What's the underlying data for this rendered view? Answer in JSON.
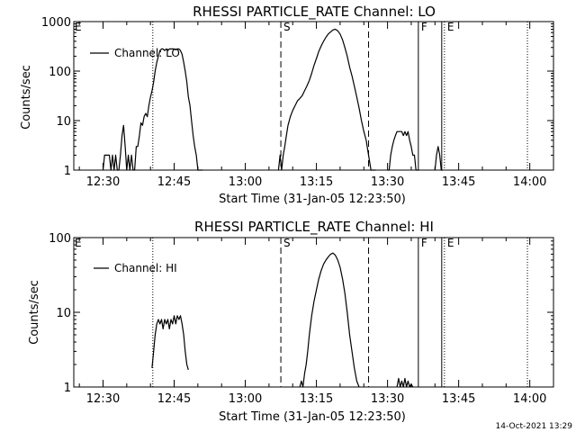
{
  "chart_data": [
    {
      "type": "line",
      "title": "RHESSI PARTICLE_RATE Channel: LO",
      "xlabel": "Start Time (31-Jan-05 12:23:50)",
      "ylabel": "Counts/sec",
      "yscale": "log",
      "ylim": [
        1,
        1000
      ],
      "xlim": [
        "12:23:50",
        "14:05:00"
      ],
      "xticks": [
        "12:30",
        "12:45",
        "13:00",
        "13:15",
        "13:30",
        "13:45",
        "14:00"
      ],
      "yticks": [
        "1",
        "10",
        "100",
        "1000"
      ],
      "legend": {
        "label": "Channel: LO",
        "placement": "top-left"
      },
      "markers": [
        {
          "label": "E",
          "time": "12:23:50",
          "style": "none"
        },
        {
          "label": "",
          "time": "12:40:30",
          "style": "dotted"
        },
        {
          "label": "S",
          "time": "13:07:30",
          "style": "dashed"
        },
        {
          "label": "",
          "time": "13:26:00",
          "style": "dashed"
        },
        {
          "label": "F",
          "time": "13:36:30",
          "style": "solid"
        },
        {
          "label": "E",
          "time": "13:42:00",
          "style": "dotted-solid"
        },
        {
          "label": "",
          "time": "13:59:30",
          "style": "dotted"
        }
      ],
      "series": [
        {
          "name": "Channel: LO",
          "segments": [
            {
              "x": [
                "12:30:00",
                "12:30:20",
                "12:30:40",
                "12:31:00",
                "12:31:20",
                "12:31:40",
                "12:32:00",
                "12:32:20",
                "12:32:40",
                "12:33:00",
                "12:33:20",
                "12:33:40",
                "12:34:00",
                "12:34:20",
                "12:34:40",
                "12:35:00",
                "12:35:20",
                "12:35:40",
                "12:36:00",
                "12:36:20",
                "12:36:40",
                "12:37:00",
                "12:37:20",
                "12:37:40",
                "12:38:00",
                "12:38:20",
                "12:38:40",
                "12:39:00",
                "12:39:20",
                "12:39:40",
                "12:40:00",
                "12:40:20",
                "12:40:40",
                "12:41:00",
                "12:41:20",
                "12:41:40",
                "12:42:00",
                "12:42:20",
                "12:42:40",
                "12:43:00",
                "12:43:20",
                "12:43:40",
                "12:44:00",
                "12:44:20",
                "12:44:40",
                "12:45:00",
                "12:45:20",
                "12:45:40",
                "12:46:00",
                "12:46:20",
                "12:46:40",
                "12:47:00",
                "12:47:20",
                "12:47:40",
                "12:48:00",
                "12:48:20",
                "12:48:40",
                "12:49:00",
                "12:49:20",
                "12:49:40",
                "12:50:00",
                "12:50:20",
                "12:50:40",
                "12:51:00"
              ],
              "y": [
                1,
                2,
                2,
                2,
                2,
                1,
                2,
                1,
                2,
                1,
                1,
                2,
                5,
                8,
                3,
                1,
                2,
                1,
                2,
                1,
                1,
                3,
                3,
                5,
                9,
                8,
                12,
                14,
                12,
                20,
                30,
                40,
                60,
                100,
                150,
                200,
                260,
                280,
                280,
                260,
                280,
                260,
                280,
                280,
                280,
                280,
                270,
                280,
                280,
                260,
                220,
                150,
                100,
                60,
                30,
                20,
                10,
                5,
                3,
                2,
                1,
                1,
                1,
                1
              ]
            },
            {
              "x": [
                "13:07:00",
                "13:07:20",
                "13:07:40",
                "13:08:00",
                "13:08:20",
                "13:08:40",
                "13:09:00",
                "13:09:30",
                "13:10:00",
                "13:10:30",
                "13:11:00",
                "13:11:30",
                "13:12:00",
                "13:12:30",
                "13:13:00",
                "13:13:30",
                "13:14:00",
                "13:14:30",
                "13:15:00",
                "13:15:30",
                "13:16:00",
                "13:16:30",
                "13:17:00",
                "13:17:30",
                "13:18:00",
                "13:18:30",
                "13:19:00",
                "13:19:30",
                "13:20:00",
                "13:20:30",
                "13:21:00",
                "13:21:30",
                "13:22:00",
                "13:22:30",
                "13:23:00",
                "13:23:30",
                "13:24:00",
                "13:24:30",
                "13:25:00",
                "13:25:30",
                "13:26:00",
                "13:26:30",
                "13:27:00",
                "13:27:30"
              ],
              "y": [
                1,
                2,
                1,
                2,
                3,
                5,
                8,
                12,
                16,
                20,
                25,
                28,
                32,
                40,
                50,
                65,
                90,
                130,
                180,
                250,
                320,
                400,
                480,
                560,
                620,
                680,
                700,
                650,
                560,
                430,
                300,
                200,
                120,
                80,
                50,
                30,
                18,
                10,
                6,
                4,
                2,
                1,
                1,
                1
              ]
            },
            {
              "x": [
                "13:30:00",
                "13:30:20",
                "13:30:40",
                "13:31:00",
                "13:31:20",
                "13:31:40",
                "13:32:00",
                "13:32:20",
                "13:32:40",
                "13:33:00",
                "13:33:20",
                "13:33:40",
                "13:34:00",
                "13:34:20",
                "13:34:40",
                "13:35:00",
                "13:35:20",
                "13:35:40",
                "13:36:00",
                "13:36:20",
                "13:36:40"
              ],
              "y": [
                1,
                1,
                2,
                3,
                4,
                5,
                6,
                6,
                6,
                6,
                5,
                6,
                5,
                6,
                4,
                3,
                2,
                2,
                1,
                1,
                1
              ]
            },
            {
              "x": [
                "13:40:00",
                "13:40:20",
                "13:40:40",
                "13:41:00",
                "13:41:20",
                "13:41:40"
              ],
              "y": [
                1,
                2,
                3,
                2,
                1,
                1
              ]
            }
          ]
        }
      ]
    },
    {
      "type": "line",
      "title": "RHESSI PARTICLE_RATE Channel: HI",
      "xlabel": "Start Time (31-Jan-05 12:23:50)",
      "ylabel": "Counts/sec",
      "yscale": "log",
      "ylim": [
        1,
        100
      ],
      "xlim": [
        "12:23:50",
        "14:05:00"
      ],
      "xticks": [
        "12:30",
        "12:45",
        "13:00",
        "13:15",
        "13:30",
        "13:45",
        "14:00"
      ],
      "yticks": [
        "1",
        "10",
        "100"
      ],
      "legend": {
        "label": "Channel: HI",
        "placement": "top-left"
      },
      "markers": [
        {
          "label": "E",
          "time": "12:23:50",
          "style": "none"
        },
        {
          "label": "",
          "time": "12:40:30",
          "style": "dotted"
        },
        {
          "label": "S",
          "time": "13:07:30",
          "style": "dashed"
        },
        {
          "label": "",
          "time": "13:26:00",
          "style": "dashed"
        },
        {
          "label": "F",
          "time": "13:36:30",
          "style": "solid"
        },
        {
          "label": "E",
          "time": "13:42:00",
          "style": "dotted-solid"
        },
        {
          "label": "",
          "time": "13:59:30",
          "style": "dotted"
        }
      ],
      "series": [
        {
          "name": "Channel: HI",
          "segments": [
            {
              "x": [
                "12:40:20",
                "12:40:40",
                "12:41:00",
                "12:41:20",
                "12:41:40",
                "12:42:00",
                "12:42:20",
                "12:42:40",
                "12:43:00",
                "12:43:20",
                "12:43:40",
                "12:44:00",
                "12:44:20",
                "12:44:40",
                "12:45:00",
                "12:45:20",
                "12:45:40",
                "12:46:00",
                "12:46:20",
                "12:46:40",
                "12:47:00",
                "12:47:20",
                "12:47:40",
                "12:48:00"
              ],
              "y": [
                1.8,
                3,
                5,
                7,
                8,
                7,
                8,
                6,
                8,
                7,
                8,
                6,
                8,
                7,
                9,
                7,
                9,
                8,
                9,
                7,
                5,
                3,
                2,
                1.7
              ]
            },
            {
              "x": [
                "13:11:30",
                "13:11:50",
                "13:12:10",
                "13:12:30",
                "13:12:50",
                "13:13:10",
                "13:13:30",
                "13:14:00",
                "13:14:30",
                "13:15:00",
                "13:15:30",
                "13:16:00",
                "13:16:30",
                "13:17:00",
                "13:17:30",
                "13:18:00",
                "13:18:30",
                "13:19:00",
                "13:19:30",
                "13:20:00",
                "13:20:30",
                "13:21:00",
                "13:21:30",
                "13:22:00",
                "13:22:30",
                "13:23:00",
                "13:23:30",
                "13:24:00"
              ],
              "y": [
                1,
                1.2,
                1,
                1.5,
                2,
                3,
                5,
                9,
                14,
                20,
                28,
                36,
                44,
                50,
                55,
                60,
                62,
                58,
                50,
                40,
                28,
                18,
                10,
                5,
                3,
                1.8,
                1.2,
                1
              ]
            },
            {
              "x": [
                "13:32:00",
                "13:32:20",
                "13:32:40",
                "13:33:00",
                "13:33:20",
                "13:33:40",
                "13:34:00",
                "13:34:20",
                "13:34:40",
                "13:35:00",
                "13:35:20"
              ],
              "y": [
                1,
                1.3,
                1,
                1.2,
                1,
                1.3,
                1,
                1.2,
                1,
                1.1,
                1
              ]
            }
          ]
        }
      ]
    }
  ],
  "timestamp": "14-Oct-2021 13:29"
}
